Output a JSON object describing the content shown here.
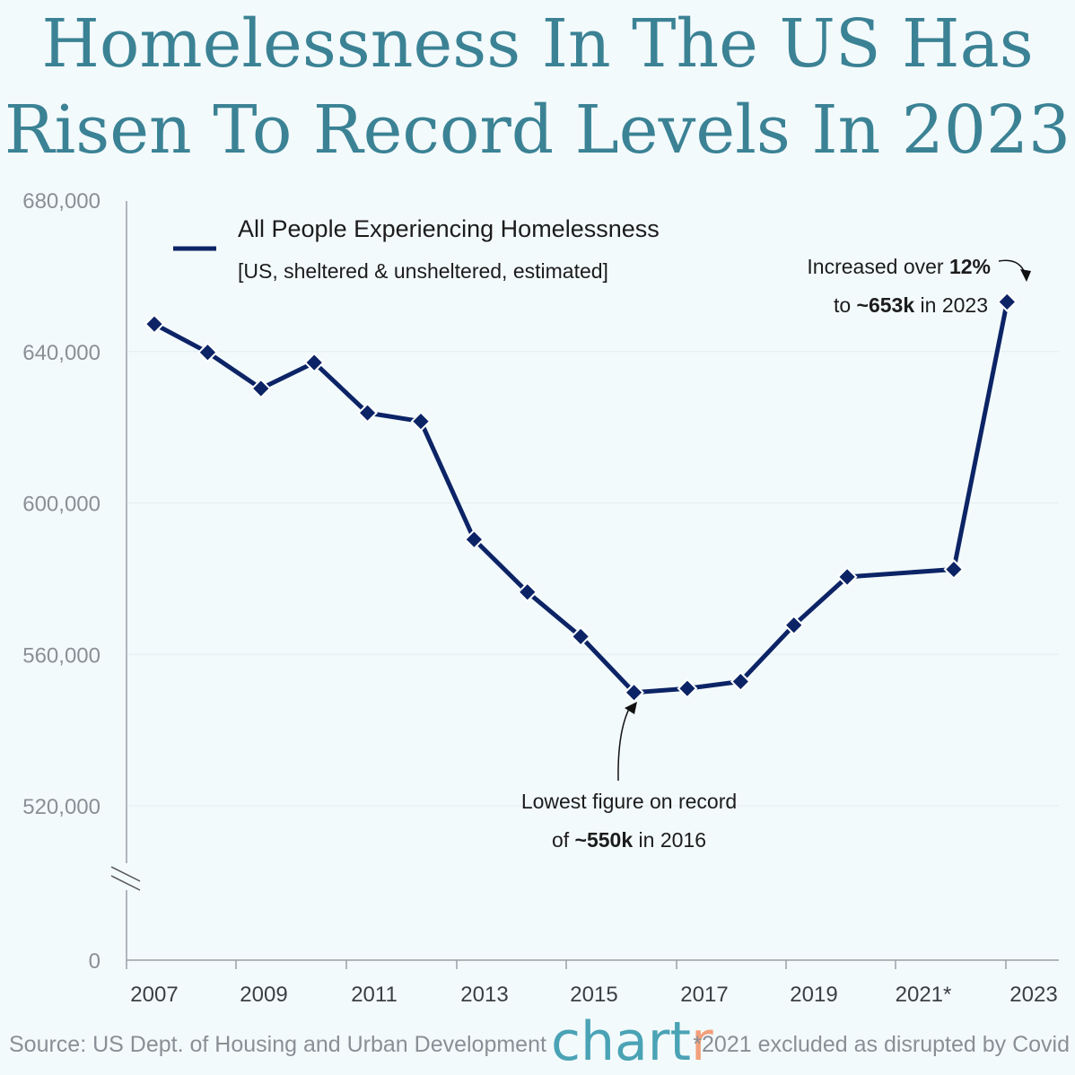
{
  "title": {
    "line1": "Homelessness In The US Has",
    "line2": "Risen To Record Levels In 2023"
  },
  "chart_data": {
    "type": "line",
    "title": "Homelessness In The US Has Risen To Record Levels In 2023",
    "series": [
      {
        "name": "All People Experiencing Homelessness",
        "subtitle": "[US, sheltered & unsheltered, estimated]",
        "color": "#0c2466",
        "x": [
          2007,
          2008,
          2009,
          2010,
          2011,
          2012,
          2013,
          2014,
          2015,
          2016,
          2017,
          2018,
          2019,
          2020,
          2022,
          2023
        ],
        "values": [
          647258,
          639784,
          630227,
          637077,
          623788,
          621553,
          590364,
          576450,
          564708,
          549928,
          550996,
          552830,
          567715,
          580466,
          582462,
          653104
        ]
      }
    ],
    "x_ticks": [
      "2007",
      "2009",
      "2011",
      "2013",
      "2015",
      "2017",
      "2019",
      "2021*",
      "2023"
    ],
    "x_tick_values": [
      2007,
      2009,
      2011,
      2013,
      2015,
      2017,
      2019,
      2021,
      2023
    ],
    "y_ticks": [
      "680,000",
      "640,000",
      "600,000",
      "560,000",
      "520,000",
      "0"
    ],
    "y_tick_values": [
      680000,
      640000,
      600000,
      560000,
      520000,
      0
    ],
    "ylim": [
      500000,
      680000
    ],
    "axis_break": true,
    "grid": true,
    "legend_position": "top-left",
    "annotations": {
      "peak_line1_prefix": "Increased over ",
      "peak_line1_bold": "12%",
      "peak_line2_prefix": "to ",
      "peak_line2_bold": "~653k",
      "peak_line2_suffix": " in 2023",
      "low_line1": "Lowest figure on record",
      "low_line2_prefix": "of ",
      "low_line2_bold": "~550k",
      "low_line2_suffix": " in 2016"
    }
  },
  "footer": {
    "source": "Source: US Dept. of Housing and Urban Development",
    "brand_main": "chart",
    "brand_accent": "r",
    "note": "*2021 excluded as disrupted by Covid"
  }
}
